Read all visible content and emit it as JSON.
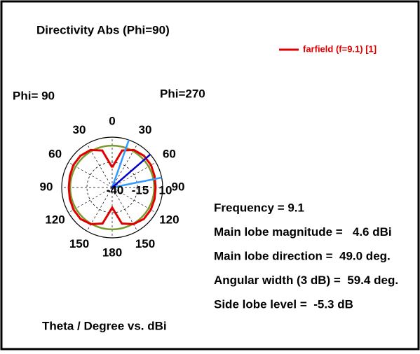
{
  "chart_data": {
    "type": "polar",
    "title": "Directivity Abs (Phi=90)",
    "left_label": "Phi= 90",
    "right_label": "Phi=270",
    "axis_label": "Theta / Degree vs. dBi",
    "rlim": [
      -40,
      10
    ],
    "rticks": [
      -40,
      -15,
      10
    ],
    "angle_ticks": [
      0,
      30,
      60,
      90,
      120,
      150,
      180,
      {
        "value": 210,
        "label": "150"
      },
      {
        "value": 240,
        "label": "120"
      },
      {
        "value": 270,
        "label": "90"
      },
      {
        "value": 300,
        "label": "60"
      },
      {
        "value": 330,
        "label": "30"
      }
    ],
    "series": [
      {
        "name": "farfield (f=9.1) [1]",
        "color": "#e00000",
        "theta": [
          0,
          15,
          30,
          45,
          60,
          75,
          90,
          105,
          120,
          135,
          150,
          165,
          180,
          195,
          210,
          225,
          240,
          255,
          270,
          285,
          300,
          315,
          330,
          345,
          360
        ],
        "values": [
          -20,
          -2,
          3,
          4.5,
          4.4,
          3.5,
          3,
          3.5,
          4.2,
          4.3,
          2,
          -3,
          -20,
          -3,
          2,
          4.3,
          4.2,
          3.5,
          3,
          3.5,
          4.4,
          4.5,
          3,
          -2,
          -20
        ]
      }
    ],
    "threshold_circle": {
      "value": 1.6,
      "color": "#7a9a30"
    },
    "main_lobe_line": {
      "angle": 49,
      "color": "#0000cc"
    },
    "width_lines": {
      "angles": [
        19.3,
        78.7
      ],
      "color": "#3399ff"
    },
    "info": [
      "Frequency = 9.1",
      "Main lobe magnitude =   4.6 dBi",
      "Main lobe direction =  49.0 deg.",
      "Angular width (3 dB) =  59.4 deg.",
      "Side lobe level =  -5.3 dB"
    ]
  }
}
